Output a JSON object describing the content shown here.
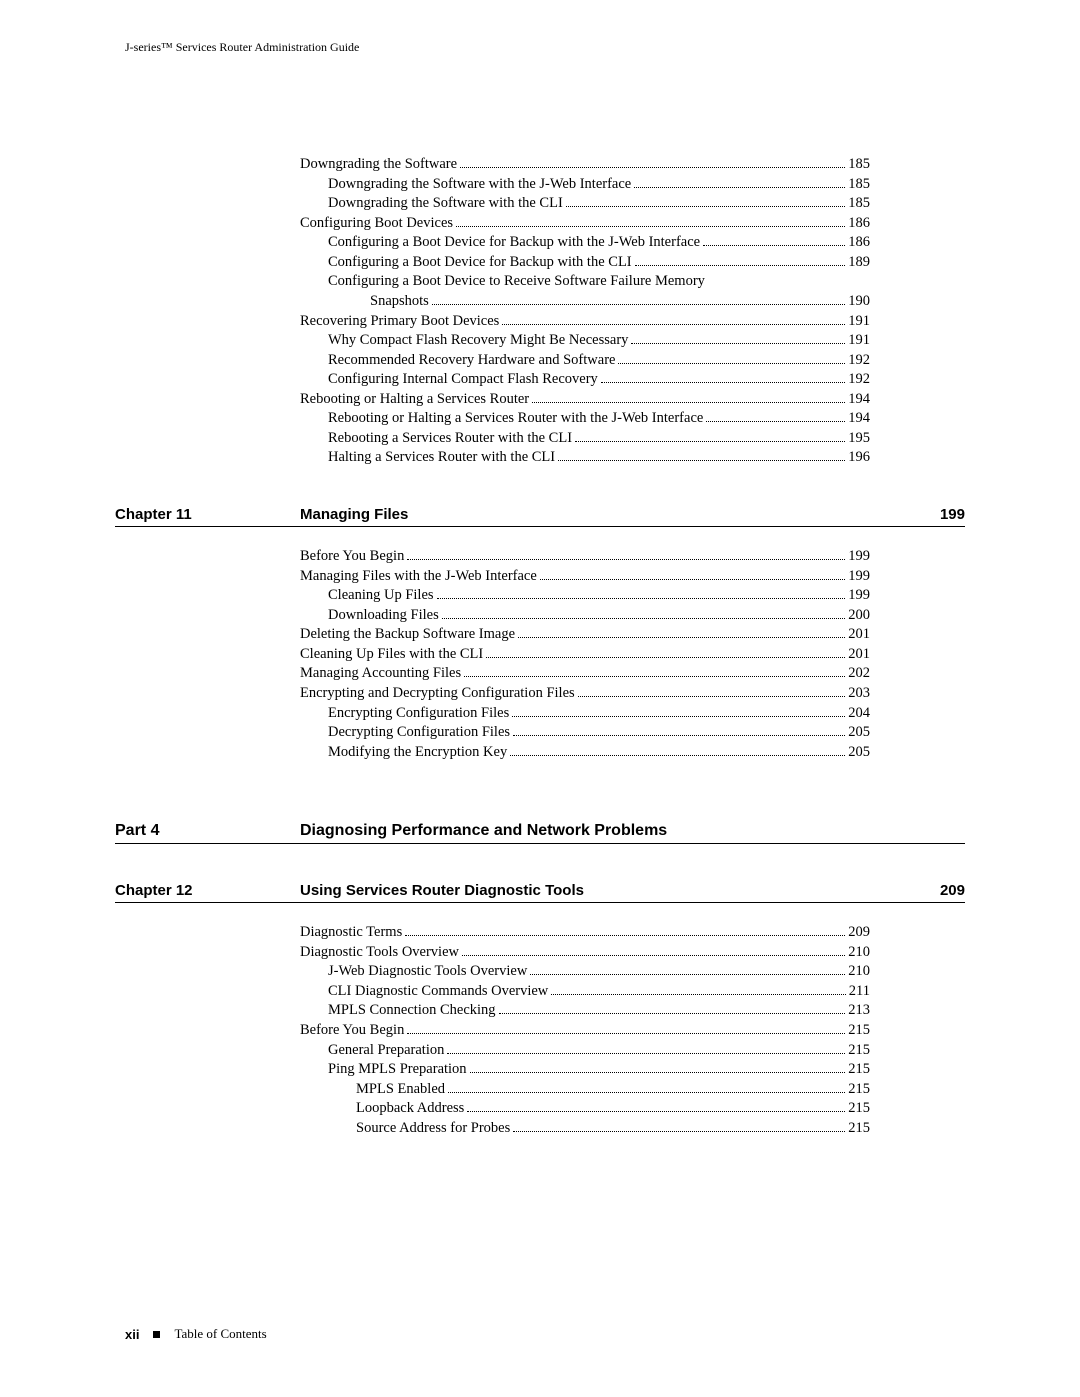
{
  "header": {
    "running_head": "J-series™ Services Router Administration Guide"
  },
  "footer": {
    "page_number": "xii",
    "label": "Table of Contents"
  },
  "blocks": [
    {
      "kind": "toc",
      "entries": [
        {
          "level": 0,
          "title": "Downgrading the Software",
          "page": "185"
        },
        {
          "level": 1,
          "title": "Downgrading the Software with the J-Web Interface",
          "page": "185"
        },
        {
          "level": 1,
          "title": "Downgrading the Software with the CLI",
          "page": "185"
        },
        {
          "level": 0,
          "title": "Configuring Boot Devices",
          "page": "186"
        },
        {
          "level": 1,
          "title": "Configuring a Boot Device for Backup with the J-Web Interface",
          "page": "186"
        },
        {
          "level": 1,
          "title": "Configuring a Boot Device for Backup with the CLI",
          "page": "189"
        },
        {
          "level": 1,
          "title": "Configuring a Boot Device to Receive Software Failure Memory",
          "wrap": true
        },
        {
          "level": 1,
          "continuation": true,
          "title": "Snapshots",
          "page": "190"
        },
        {
          "level": 0,
          "title": "Recovering Primary Boot Devices",
          "page": "191"
        },
        {
          "level": 1,
          "title": "Why Compact Flash Recovery Might Be Necessary",
          "page": "191"
        },
        {
          "level": 1,
          "title": "Recommended Recovery Hardware and Software",
          "page": "192"
        },
        {
          "level": 1,
          "title": "Configuring Internal Compact Flash Recovery",
          "page": "192"
        },
        {
          "level": 0,
          "title": "Rebooting or Halting a Services Router",
          "page": "194"
        },
        {
          "level": 1,
          "title": "Rebooting or Halting a Services Router with the J-Web Interface",
          "page": "194"
        },
        {
          "level": 1,
          "title": "Rebooting a Services Router with the CLI",
          "page": "195"
        },
        {
          "level": 1,
          "title": "Halting a Services Router with the CLI",
          "page": "196"
        }
      ]
    },
    {
      "kind": "section",
      "label": "Chapter 11",
      "title": "Managing Files",
      "page": "199"
    },
    {
      "kind": "toc",
      "entries": [
        {
          "level": 0,
          "title": "Before You Begin",
          "page": "199"
        },
        {
          "level": 0,
          "title": "Managing Files with the J-Web Interface",
          "page": "199"
        },
        {
          "level": 1,
          "title": "Cleaning Up Files",
          "page": "199"
        },
        {
          "level": 1,
          "title": "Downloading Files",
          "page": "200"
        },
        {
          "level": 0,
          "title": "Deleting the Backup Software Image",
          "page": "201"
        },
        {
          "level": 0,
          "title": "Cleaning Up Files with the CLI",
          "page": "201"
        },
        {
          "level": 0,
          "title": "Managing Accounting Files",
          "page": "202"
        },
        {
          "level": 0,
          "title": "Encrypting and Decrypting Configuration Files",
          "page": "203"
        },
        {
          "level": 1,
          "title": "Encrypting Configuration Files",
          "page": "204"
        },
        {
          "level": 1,
          "title": "Decrypting Configuration Files",
          "page": "205"
        },
        {
          "level": 1,
          "title": "Modifying the Encryption Key",
          "page": "205"
        }
      ]
    },
    {
      "kind": "section",
      "label": "Part 4",
      "title": "Diagnosing Performance and Network Problems",
      "no_page": true,
      "part": true,
      "extra_top": true
    },
    {
      "kind": "section",
      "label": "Chapter 12",
      "title": "Using Services Router Diagnostic Tools",
      "page": "209"
    },
    {
      "kind": "toc",
      "entries": [
        {
          "level": 0,
          "title": "Diagnostic Terms",
          "page": "209"
        },
        {
          "level": 0,
          "title": "Diagnostic Tools Overview",
          "page": "210"
        },
        {
          "level": 1,
          "title": "J-Web Diagnostic Tools Overview",
          "page": "210"
        },
        {
          "level": 1,
          "title": "CLI Diagnostic Commands Overview",
          "page": "211"
        },
        {
          "level": 1,
          "title": "MPLS Connection Checking",
          "page": "213"
        },
        {
          "level": 0,
          "title": "Before You Begin",
          "page": "215"
        },
        {
          "level": 1,
          "title": "General Preparation",
          "page": "215"
        },
        {
          "level": 1,
          "title": "Ping MPLS Preparation",
          "page": "215"
        },
        {
          "level": 2,
          "title": "MPLS Enabled",
          "page": "215"
        },
        {
          "level": 2,
          "title": "Loopback Address",
          "page": "215"
        },
        {
          "level": 2,
          "title": "Source Address for Probes",
          "page": "215"
        }
      ]
    }
  ]
}
